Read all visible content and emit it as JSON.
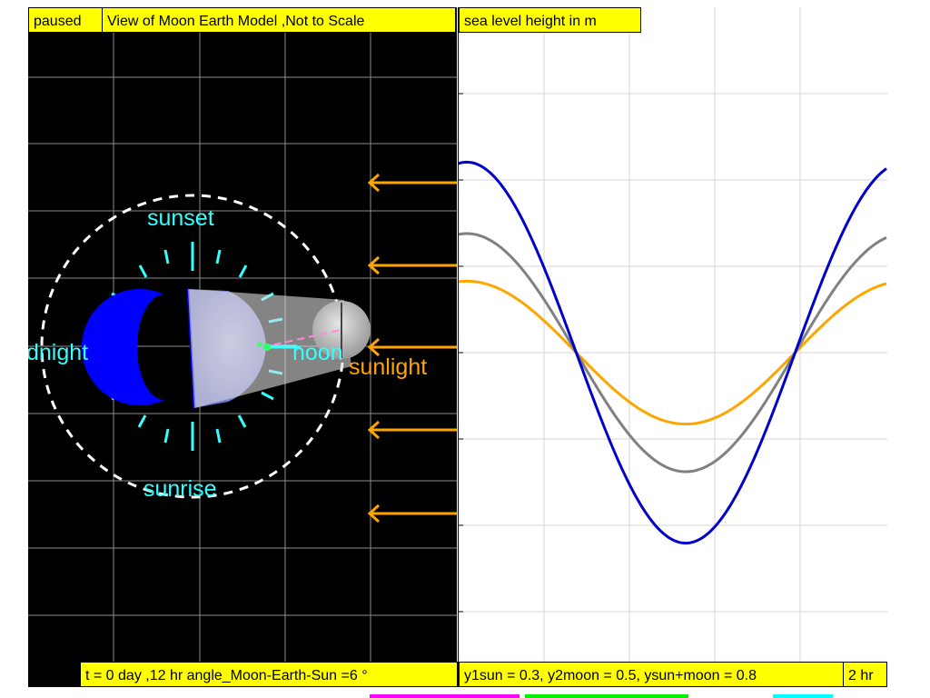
{
  "status": "paused",
  "left_view": {
    "title": "View of Moon Earth Model ,Not to Scale",
    "labels": {
      "sunset": "sunset",
      "sunrise": "sunrise",
      "midnight": "dnight",
      "noon": "noon",
      "sunlight": "sunlight"
    },
    "info": "t = 0 day ,12 hr angle_Moon-Earth-Sun =6 °"
  },
  "right_view": {
    "title": "sea level height in m",
    "readout": "y1sun = 0.3, y2moon = 0.5, ysun+moon = 0.8",
    "time_axis_label": "2 hr"
  },
  "colors": {
    "sun": "#ffa500",
    "moon": "#808080",
    "combined": "#0000cc",
    "clock_ticks": "#33ffff",
    "swatch_1": "#ff00ff",
    "swatch_2": "#00ee00",
    "swatch_3": "#00ffff"
  },
  "chart_data": {
    "type": "line",
    "title": "sea level height in m",
    "series": [
      {
        "amplitude": 0.3,
        "color": "#ffa500"
      },
      {
        "amplitude": 0.5,
        "color": "#808080"
      },
      {
        "amplitude": 0.8,
        "color": "#0000cc"
      }
    ]
  }
}
